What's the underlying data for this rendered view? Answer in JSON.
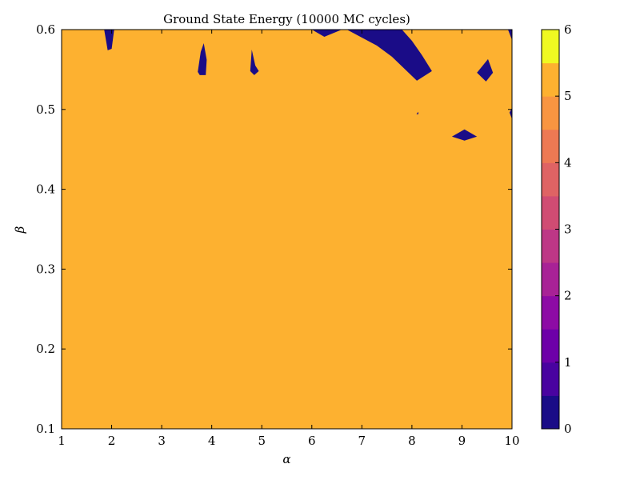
{
  "chart_data": {
    "type": "heatmap",
    "title": "Ground State Energy (10000 MC cycles)",
    "xlabel": "α",
    "ylabel": "β",
    "xlim": [
      1,
      10
    ],
    "ylim": [
      0.1,
      0.6
    ],
    "xticks": [
      "1",
      "2",
      "3",
      "4",
      "5",
      "6",
      "7",
      "8",
      "9",
      "10"
    ],
    "yticks": [
      "0.1",
      "0.2",
      "0.3",
      "0.4",
      "0.5",
      "0.6"
    ],
    "background_level": 5.5,
    "colorbar": {
      "min": 0,
      "max": 6,
      "ticks": [
        "0",
        "1",
        "2",
        "3",
        "4",
        "5",
        "6"
      ],
      "levels": [
        {
          "from": 0.0,
          "to": 0.5,
          "color": "#1a0c87"
        },
        {
          "from": 0.5,
          "to": 1.0,
          "color": "#4903a0"
        },
        {
          "from": 1.0,
          "to": 1.5,
          "color": "#6d00a8"
        },
        {
          "from": 1.5,
          "to": 2.0,
          "color": "#8d0ba5"
        },
        {
          "from": 2.0,
          "to": 2.5,
          "color": "#a82296"
        },
        {
          "from": 2.5,
          "to": 3.0,
          "color": "#bd3786"
        },
        {
          "from": 3.0,
          "to": 3.5,
          "color": "#d04c73"
        },
        {
          "from": 3.5,
          "to": 4.0,
          "color": "#df6364"
        },
        {
          "from": 4.0,
          "to": 4.5,
          "color": "#ed7953"
        },
        {
          "from": 4.5,
          "to": 5.0,
          "color": "#f89541"
        },
        {
          "from": 5.0,
          "to": 5.5,
          "color": "#fdb130"
        },
        {
          "from": 5.5,
          "to": 6.0,
          "color": "#f0f921"
        }
      ]
    },
    "regions": [
      {
        "level": 0.25,
        "points": [
          [
            1.85,
            0.6
          ],
          [
            1.92,
            0.574
          ],
          [
            2.0,
            0.576
          ],
          [
            2.05,
            0.6
          ]
        ]
      },
      {
        "level": 0.25,
        "points": [
          [
            3.72,
            0.547
          ],
          [
            3.78,
            0.572
          ],
          [
            3.84,
            0.583
          ],
          [
            3.9,
            0.562
          ],
          [
            3.88,
            0.543
          ],
          [
            3.76,
            0.543
          ]
        ]
      },
      {
        "level": 0.25,
        "points": [
          [
            4.77,
            0.548
          ],
          [
            4.8,
            0.575
          ],
          [
            4.87,
            0.555
          ],
          [
            4.94,
            0.548
          ],
          [
            4.85,
            0.543
          ]
        ]
      },
      {
        "level": 0.25,
        "points": [
          [
            6.0,
            0.6
          ],
          [
            6.25,
            0.591
          ],
          [
            6.6,
            0.6
          ]
        ]
      },
      {
        "level": 0.25,
        "points": [
          [
            6.7,
            0.6
          ],
          [
            7.3,
            0.58
          ],
          [
            7.6,
            0.566
          ],
          [
            7.9,
            0.548
          ],
          [
            8.1,
            0.536
          ],
          [
            8.4,
            0.548
          ],
          [
            8.2,
            0.568
          ],
          [
            8.0,
            0.586
          ],
          [
            7.8,
            0.6
          ]
        ]
      },
      {
        "level": 0.25,
        "points": [
          [
            9.3,
            0.546
          ],
          [
            9.52,
            0.563
          ],
          [
            9.62,
            0.546
          ],
          [
            9.48,
            0.535
          ]
        ]
      },
      {
        "level": 0.25,
        "points": [
          [
            8.8,
            0.466
          ],
          [
            9.05,
            0.475
          ],
          [
            9.3,
            0.466
          ],
          [
            9.05,
            0.461
          ]
        ]
      },
      {
        "level": 0.25,
        "points": [
          [
            8.09,
            0.494
          ],
          [
            8.13,
            0.497
          ],
          [
            8.13,
            0.494
          ]
        ]
      },
      {
        "level": 0.25,
        "points": [
          [
            9.92,
            0.6
          ],
          [
            10.0,
            0.6
          ],
          [
            10.0,
            0.587
          ]
        ]
      },
      {
        "level": 0.25,
        "points": [
          [
            9.95,
            0.496
          ],
          [
            10.0,
            0.502
          ],
          [
            10.0,
            0.488
          ]
        ]
      }
    ]
  }
}
